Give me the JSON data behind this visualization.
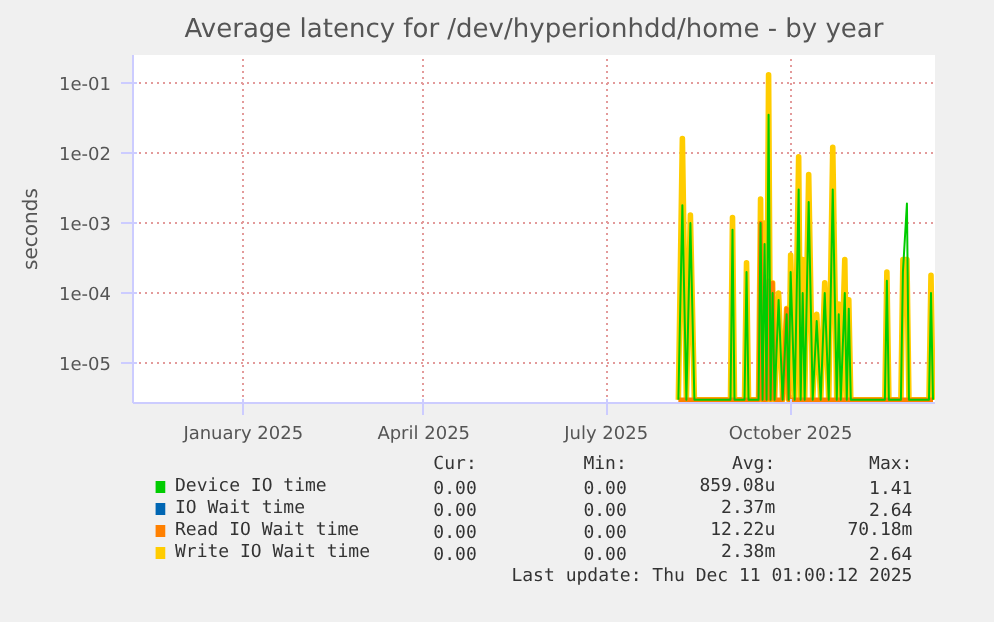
{
  "chart_data": {
    "type": "line",
    "title": "Average latency for /dev/hyperionhdd/home - by year",
    "ylabel": "seconds",
    "log": "y",
    "grid": true,
    "legend": "bottom",
    "line_style": "solid",
    "marker": "none",
    "xlim": [
      "2024-11-07",
      "2025-12-12"
    ],
    "xticks": [
      {
        "value": "2025-01-01",
        "label": "January 2025"
      },
      {
        "value": "2025-04-01",
        "label": "April 2025"
      },
      {
        "value": "2025-07-01",
        "label": "July 2025"
      },
      {
        "value": "2025-10-01",
        "label": "October 2025"
      }
    ],
    "ylim": [
      2.7e-06,
      0.25
    ],
    "yticks": [
      {
        "value": 1e-05,
        "label": "1e-05"
      },
      {
        "value": 0.0001,
        "label": "1e-04"
      },
      {
        "value": 0.001,
        "label": "1e-03"
      },
      {
        "value": 0.01,
        "label": "1e-02"
      },
      {
        "value": 0.1,
        "label": "1e-01"
      }
    ],
    "x": [
      "2025-08-06",
      "2025-08-08",
      "2025-08-10",
      "2025-08-12",
      "2025-08-14",
      "2025-09-01",
      "2025-09-02",
      "2025-09-03",
      "2025-09-08",
      "2025-09-09",
      "2025-09-10",
      "2025-09-15",
      "2025-09-16",
      "2025-09-17",
      "2025-09-18",
      "2025-09-19",
      "2025-09-20",
      "2025-09-21",
      "2025-09-22",
      "2025-09-23",
      "2025-09-25",
      "2025-09-27",
      "2025-09-29",
      "2025-09-30",
      "2025-10-01",
      "2025-10-03",
      "2025-10-05",
      "2025-10-06",
      "2025-10-07",
      "2025-10-08",
      "2025-10-10",
      "2025-10-12",
      "2025-10-14",
      "2025-10-16",
      "2025-10-18",
      "2025-10-20",
      "2025-10-22",
      "2025-10-24",
      "2025-10-25",
      "2025-10-26",
      "2025-10-28",
      "2025-10-29",
      "2025-10-30",
      "2025-10-31",
      "2025-11-17",
      "2025-11-18",
      "2025-11-19",
      "2025-11-25",
      "2025-11-26",
      "2025-11-28",
      "2025-11-29",
      "2025-12-09",
      "2025-12-10",
      "2025-12-11"
    ],
    "series": [
      {
        "name": "Device IO time",
        "color": "#00cc00",
        "values": [
          3e-06,
          0.0018,
          3e-06,
          0.001,
          3e-06,
          3e-06,
          0.0008,
          3e-06,
          3e-06,
          0.0002,
          3e-06,
          3e-06,
          0.001,
          3e-06,
          0.0005,
          3e-06,
          0.035,
          3e-06,
          0.0001,
          3e-06,
          8e-05,
          3e-06,
          5e-05,
          3e-06,
          0.0002,
          3e-06,
          0.003,
          3e-06,
          0.0001,
          3e-06,
          0.002,
          3e-06,
          4e-05,
          3e-06,
          0.0001,
          3e-06,
          0.003,
          3e-06,
          5e-05,
          3e-06,
          0.0001,
          3e-06,
          6e-05,
          3e-06,
          3e-06,
          0.00015,
          3e-06,
          3e-06,
          0.0002,
          0.0019,
          3e-06,
          3e-06,
          0.0001,
          3e-06
        ]
      },
      {
        "name": "IO Wait time",
        "color": "#0066b3",
        "values": [
          null,
          null,
          null,
          null,
          null,
          null,
          null,
          null,
          null,
          null,
          null,
          null,
          null,
          null,
          null,
          null,
          null,
          null,
          null,
          null,
          null,
          null,
          null,
          null,
          null,
          null,
          null,
          null,
          null,
          null,
          null,
          null,
          null,
          null,
          null,
          null,
          null,
          null,
          null,
          null,
          null,
          null,
          null,
          null,
          null,
          null,
          null,
          null,
          null,
          null,
          null,
          null,
          null,
          null
        ]
      },
      {
        "name": "Read IO Wait time",
        "color": "#ff8000",
        "values": [
          3e-06,
          3e-06,
          3e-06,
          3e-06,
          3e-06,
          3e-06,
          3e-06,
          3e-06,
          3e-06,
          3e-06,
          3e-06,
          3e-06,
          0.001,
          3e-06,
          3e-06,
          3e-06,
          0.00015,
          3e-06,
          0.00014,
          3e-06,
          3e-06,
          3e-06,
          6e-05,
          3e-06,
          3e-06,
          3e-06,
          3e-06,
          3e-06,
          3e-06,
          3e-06,
          3e-06,
          3e-06,
          3e-06,
          3e-06,
          3e-06,
          3e-06,
          3e-06,
          3e-06,
          3e-06,
          3e-06,
          3e-06,
          3e-06,
          3e-06,
          3e-06,
          3e-06,
          3e-06,
          3e-06,
          3e-06,
          3e-06,
          3e-06,
          3e-06,
          3e-06,
          3e-06,
          3e-06
        ]
      },
      {
        "name": "Write IO Wait time",
        "color": "#ffcc00",
        "values": [
          3e-06,
          0.016,
          3e-06,
          0.0013,
          3e-06,
          3e-06,
          0.0012,
          3e-06,
          3e-06,
          0.00027,
          3e-06,
          3e-06,
          0.0022,
          3e-06,
          0.001,
          3e-06,
          0.13,
          3e-06,
          0.00014,
          3e-06,
          0.0001,
          3e-06,
          6e-05,
          3e-06,
          0.00035,
          3e-06,
          0.0088,
          3e-06,
          0.0003,
          3e-06,
          0.0049,
          3e-06,
          5e-05,
          3e-06,
          0.00014,
          3e-06,
          0.012,
          3e-06,
          7e-05,
          3e-06,
          0.0003,
          3e-06,
          8e-05,
          3e-06,
          3e-06,
          0.0002,
          3e-06,
          3e-06,
          0.0003,
          0.0003,
          3e-06,
          3e-06,
          0.00018,
          3e-06
        ]
      }
    ],
    "annotations": [
      "Cur:",
      "Min:",
      "Avg:",
      "Max:",
      "0.00",
      "0.00",
      "859.08u",
      "1.41",
      "0.00",
      "0.00",
      "2.37m",
      "2.64",
      "0.00",
      "0.00",
      "12.22u",
      "70.18m",
      "0.00",
      "0.00",
      "2.38m",
      "2.64",
      "Last update: Thu Dec 11 01:00:12 2025"
    ]
  }
}
